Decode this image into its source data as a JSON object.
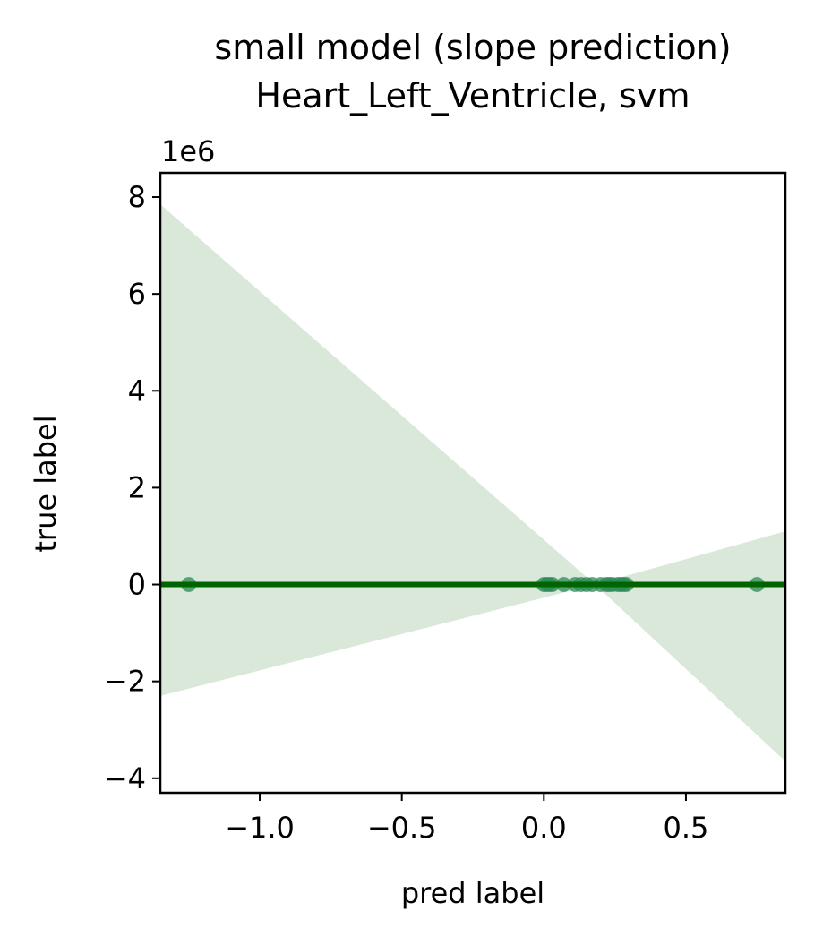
{
  "chart_data": {
    "type": "scatter",
    "title": "small model (slope prediction)\nHeart_Left_Ventricle, svm",
    "title_lines": [
      "small model (slope prediction)",
      "Heart_Left_Ventricle, svm"
    ],
    "xlabel": "pred label",
    "ylabel": "true label",
    "y_offset_label": "1e6",
    "xlim": [
      -1.35,
      0.85
    ],
    "ylim": [
      -4.3,
      8.5
    ],
    "x_ticks": [
      -1.0,
      -0.5,
      0.0,
      0.5
    ],
    "x_tick_labels": [
      "−1.0",
      "−0.5",
      "0.0",
      "0.5"
    ],
    "y_ticks": [
      -4,
      -2,
      0,
      2,
      4,
      6,
      8
    ],
    "y_tick_labels": [
      "−4",
      "−2",
      "0",
      "2",
      "4",
      "6",
      "8"
    ],
    "grid": false,
    "legend": "none",
    "points": {
      "x": [
        -1.25,
        0.0,
        0.01,
        0.02,
        0.03,
        0.07,
        0.11,
        0.13,
        0.15,
        0.17,
        0.2,
        0.22,
        0.23,
        0.24,
        0.26,
        0.27,
        0.28,
        0.29,
        0.75
      ],
      "y": [
        0,
        0,
        0,
        0,
        0,
        0,
        0,
        0,
        0,
        0,
        0,
        0,
        0,
        0,
        0,
        0,
        0,
        0,
        0
      ]
    },
    "regression_line": {
      "x": [
        -1.35,
        0.85
      ],
      "y": [
        0,
        0
      ]
    },
    "confidence_band": {
      "x": [
        -1.35,
        0.18,
        0.85
      ],
      "upper": [
        7.85,
        0.0,
        1.1
      ],
      "lower": [
        -2.3,
        0.0,
        -3.65
      ]
    },
    "colors": {
      "line": "#006400",
      "points": "#2e8b57",
      "band": "#d9e8d9"
    }
  }
}
